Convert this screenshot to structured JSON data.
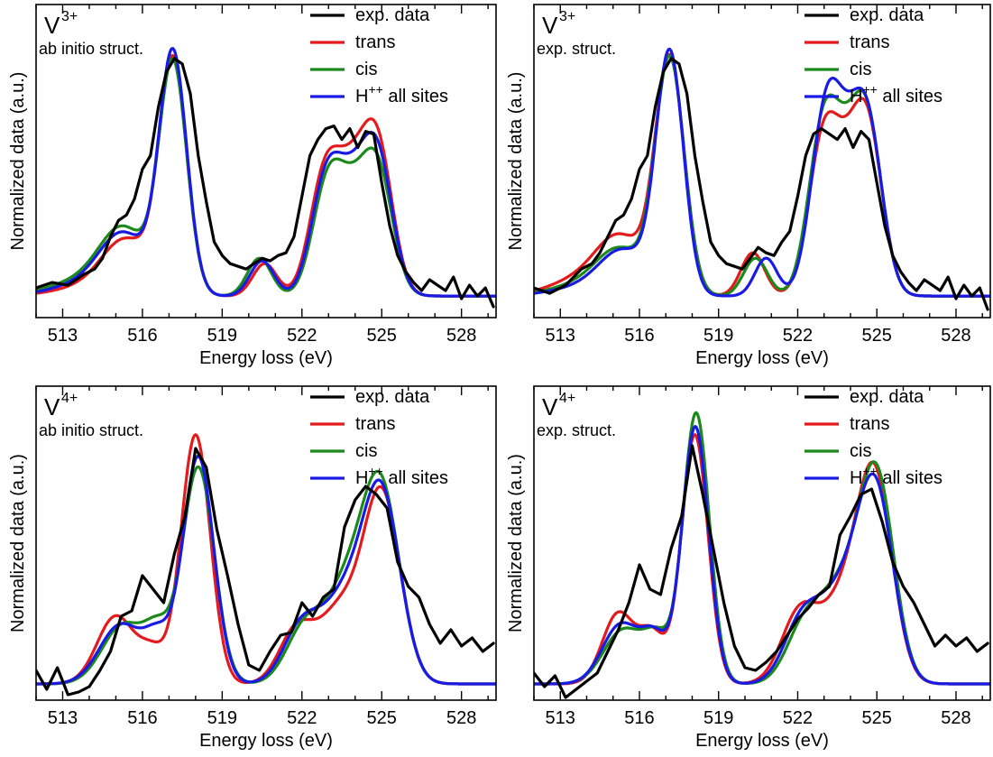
{
  "colors": {
    "exp": "#000000",
    "trans": "#e41a1c",
    "cis": "#1b8a1b",
    "hpp": "#1a1ae6"
  },
  "legend": [
    {
      "key": "exp",
      "label": "exp. data"
    },
    {
      "key": "trans",
      "label": "trans"
    },
    {
      "key": "cis",
      "label": "cis"
    },
    {
      "key": "hpp",
      "label": "H",
      "sup": "++",
      "suffix": " all sites"
    }
  ],
  "chart_data": [
    {
      "type": "line",
      "ion": "V",
      "ion_charge": "3+",
      "structure": "ab initio struct.",
      "xlabel": "Energy loss (eV)",
      "ylabel": "Normalized data (a.u.)",
      "xlim": [
        512,
        529.3
      ],
      "ylim": [
        -0.08,
        1.08
      ],
      "xticks": [
        513,
        516,
        519,
        522,
        525,
        528
      ],
      "series": [
        {
          "name": "exp. data",
          "key": "exp",
          "x": [
            512,
            512.6,
            513.2,
            513.8,
            514.2,
            514.5,
            514.8,
            515.1,
            515.4,
            515.7,
            516.0,
            516.3,
            516.6,
            516.9,
            517.2,
            517.5,
            517.8,
            518.1,
            518.4,
            518.7,
            519.0,
            519.3,
            519.6,
            519.9,
            520.2,
            520.5,
            520.8,
            521.1,
            521.4,
            521.7,
            522.0,
            522.3,
            522.6,
            522.9,
            523.2,
            523.5,
            523.8,
            524.1,
            524.4,
            524.7,
            525.0,
            525.3,
            525.6,
            525.9,
            526.2,
            526.5,
            526.8,
            527.1,
            527.4,
            527.7,
            528.0,
            528.3,
            528.6,
            528.9,
            529.2
          ],
          "y": [
            0.03,
            0.05,
            0.04,
            0.08,
            0.1,
            0.14,
            0.22,
            0.28,
            0.3,
            0.36,
            0.47,
            0.52,
            0.7,
            0.83,
            0.88,
            0.86,
            0.75,
            0.52,
            0.35,
            0.2,
            0.15,
            0.12,
            0.11,
            0.1,
            0.12,
            0.14,
            0.13,
            0.15,
            0.16,
            0.22,
            0.37,
            0.52,
            0.58,
            0.62,
            0.63,
            0.58,
            0.62,
            0.55,
            0.61,
            0.6,
            0.42,
            0.26,
            0.15,
            0.09,
            0.05,
            0.02,
            0.06,
            0.04,
            0.02,
            0.07,
            -0.01,
            0.04,
            0.0,
            0.03,
            -0.04
          ]
        },
        {
          "name": "trans",
          "key": "trans",
          "peaks": [
            [
              513.8,
              0.03,
              1.2
            ],
            [
              515.4,
              0.2,
              0.9
            ],
            [
              517.15,
              0.86,
              0.52
            ],
            [
              520.6,
              0.12,
              0.45
            ],
            [
              522.8,
              0.37,
              0.55
            ],
            [
              523.9,
              0.44,
              0.7
            ],
            [
              524.9,
              0.45,
              0.55
            ]
          ]
        },
        {
          "name": "cis",
          "key": "cis",
          "peaks": [
            [
              513.6,
              0.05,
              1.2
            ],
            [
              515.3,
              0.24,
              0.9
            ],
            [
              517.15,
              0.85,
              0.52
            ],
            [
              520.4,
              0.14,
              0.45
            ],
            [
              522.9,
              0.33,
              0.55
            ],
            [
              523.9,
              0.36,
              0.7
            ],
            [
              524.9,
              0.38,
              0.55
            ]
          ]
        },
        {
          "name": "H++ all sites",
          "key": "hpp",
          "peaks": [
            [
              513.7,
              0.04,
              1.2
            ],
            [
              515.3,
              0.22,
              0.9
            ],
            [
              517.15,
              0.89,
              0.52
            ],
            [
              520.5,
              0.13,
              0.45
            ],
            [
              522.85,
              0.35,
              0.55
            ],
            [
              523.9,
              0.4,
              0.7
            ],
            [
              524.9,
              0.42,
              0.55
            ]
          ]
        }
      ]
    },
    {
      "type": "line",
      "ion": "V",
      "ion_charge": "3+",
      "structure": "exp. struct.",
      "xlabel": "Energy loss (eV)",
      "ylabel": "Normalized data (a.u.)",
      "xlim": [
        512,
        529.3
      ],
      "ylim": [
        -0.08,
        1.08
      ],
      "xticks": [
        513,
        516,
        519,
        522,
        525,
        528
      ],
      "series": [
        {
          "name": "exp. data",
          "key": "exp",
          "x": [
            512,
            512.6,
            513.2,
            513.8,
            514.2,
            514.5,
            514.8,
            515.1,
            515.4,
            515.7,
            516.0,
            516.3,
            516.6,
            516.9,
            517.2,
            517.5,
            517.8,
            518.1,
            518.4,
            518.7,
            519.0,
            519.3,
            519.6,
            519.9,
            520.2,
            520.5,
            520.8,
            521.1,
            521.4,
            521.7,
            522.0,
            522.3,
            522.6,
            522.9,
            523.2,
            523.5,
            523.8,
            524.1,
            524.4,
            524.7,
            525.0,
            525.3,
            525.6,
            525.9,
            526.2,
            526.5,
            526.8,
            527.1,
            527.4,
            527.7,
            528.0,
            528.3,
            528.6,
            528.9,
            529.2
          ],
          "y": [
            0.03,
            0.01,
            0.04,
            0.1,
            0.12,
            0.16,
            0.22,
            0.28,
            0.3,
            0.36,
            0.47,
            0.52,
            0.7,
            0.83,
            0.88,
            0.86,
            0.75,
            0.52,
            0.35,
            0.2,
            0.15,
            0.12,
            0.11,
            0.1,
            0.14,
            0.18,
            0.16,
            0.15,
            0.2,
            0.24,
            0.37,
            0.52,
            0.6,
            0.62,
            0.6,
            0.58,
            0.62,
            0.55,
            0.61,
            0.58,
            0.42,
            0.26,
            0.15,
            0.09,
            0.05,
            0.02,
            0.06,
            0.04,
            0.02,
            0.07,
            -0.01,
            0.04,
            0.0,
            0.03,
            -0.05
          ]
        },
        {
          "name": "trans",
          "key": "trans",
          "peaks": [
            [
              513.8,
              0.06,
              1.2
            ],
            [
              515.3,
              0.2,
              0.9
            ],
            [
              517.15,
              0.87,
              0.55
            ],
            [
              520.3,
              0.16,
              0.45
            ],
            [
              522.9,
              0.44,
              0.55
            ],
            [
              523.8,
              0.42,
              0.7
            ],
            [
              524.7,
              0.5,
              0.55
            ]
          ]
        },
        {
          "name": "cis",
          "key": "cis",
          "peaks": [
            [
              513.8,
              0.04,
              1.2
            ],
            [
              515.3,
              0.16,
              0.9
            ],
            [
              517.15,
              0.87,
              0.55
            ],
            [
              520.4,
              0.14,
              0.45
            ],
            [
              522.9,
              0.48,
              0.55
            ],
            [
              523.8,
              0.46,
              0.7
            ],
            [
              524.7,
              0.5,
              0.55
            ]
          ]
        },
        {
          "name": "H++ all sites",
          "key": "hpp",
          "peaks": [
            [
              513.8,
              0.03,
              1.2
            ],
            [
              515.4,
              0.16,
              0.9
            ],
            [
              517.15,
              0.89,
              0.52
            ],
            [
              520.8,
              0.14,
              0.42
            ],
            [
              523.0,
              0.5,
              0.55
            ],
            [
              523.8,
              0.46,
              0.7
            ],
            [
              524.7,
              0.5,
              0.55
            ]
          ]
        }
      ]
    },
    {
      "type": "line",
      "ion": "V",
      "ion_charge": "4+",
      "structure": "ab initio struct.",
      "xlabel": "Energy loss (eV)",
      "ylabel": "Normalized data (a.u.)",
      "xlim": [
        512,
        529.3
      ],
      "ylim": [
        -0.06,
        1.1
      ],
      "xticks": [
        513,
        516,
        519,
        522,
        525,
        528
      ],
      "series": [
        {
          "name": "exp. data",
          "key": "exp",
          "x": [
            512,
            512.4,
            512.8,
            513.2,
            513.6,
            514.0,
            514.4,
            514.8,
            515.2,
            515.6,
            516.0,
            516.4,
            516.8,
            517.2,
            517.6,
            518.0,
            518.4,
            518.8,
            519.2,
            519.6,
            520.0,
            520.4,
            520.8,
            521.2,
            521.6,
            522.0,
            522.4,
            522.8,
            523.2,
            523.6,
            524.0,
            524.4,
            524.8,
            525.2,
            525.6,
            526.0,
            526.4,
            526.8,
            527.2,
            527.6,
            528.0,
            528.4,
            528.8,
            529.2
          ],
          "y": [
            0.05,
            -0.02,
            0.06,
            -0.04,
            -0.03,
            -0.01,
            0.05,
            0.12,
            0.25,
            0.27,
            0.4,
            0.35,
            0.3,
            0.48,
            0.62,
            0.87,
            0.8,
            0.57,
            0.4,
            0.22,
            0.07,
            0.05,
            0.12,
            0.18,
            0.19,
            0.3,
            0.25,
            0.32,
            0.35,
            0.58,
            0.68,
            0.73,
            0.7,
            0.65,
            0.45,
            0.36,
            0.32,
            0.22,
            0.15,
            0.2,
            0.14,
            0.17,
            0.12,
            0.15
          ]
        },
        {
          "name": "trans",
          "key": "trans",
          "peaks": [
            [
              515.0,
              0.25,
              0.7
            ],
            [
              516.4,
              0.11,
              0.5
            ],
            [
              518.0,
              0.92,
              0.55
            ],
            [
              521.8,
              0.2,
              0.65
            ],
            [
              523.4,
              0.26,
              0.75
            ],
            [
              525.0,
              0.7,
              0.7
            ]
          ]
        },
        {
          "name": "cis",
          "key": "cis",
          "peaks": [
            [
              515.3,
              0.22,
              0.8
            ],
            [
              516.6,
              0.16,
              0.5
            ],
            [
              518.1,
              0.8,
              0.6
            ],
            [
              522.1,
              0.2,
              0.7
            ],
            [
              523.7,
              0.34,
              0.8
            ],
            [
              525.0,
              0.68,
              0.7
            ]
          ]
        },
        {
          "name": "H++ all sites",
          "key": "hpp",
          "peaks": [
            [
              515.2,
              0.22,
              0.8
            ],
            [
              516.6,
              0.15,
              0.5
            ],
            [
              518.1,
              0.84,
              0.58
            ],
            [
              522.0,
              0.21,
              0.7
            ],
            [
              523.6,
              0.3,
              0.8
            ],
            [
              525.0,
              0.68,
              0.7
            ]
          ]
        }
      ]
    },
    {
      "type": "line",
      "ion": "V",
      "ion_charge": "4+",
      "structure": "exp. struct.",
      "xlabel": "Energy loss (eV)",
      "ylabel": "Normalized data (a.u.)",
      "xlim": [
        512,
        529.3
      ],
      "ylim": [
        -0.06,
        1.1
      ],
      "xticks": [
        513,
        516,
        519,
        522,
        525,
        528
      ],
      "series": [
        {
          "name": "exp. data",
          "key": "exp",
          "x": [
            512,
            512.4,
            512.8,
            513.2,
            513.6,
            514.0,
            514.4,
            514.8,
            515.2,
            515.6,
            516.0,
            516.4,
            516.8,
            517.2,
            517.6,
            518.0,
            518.4,
            518.8,
            519.2,
            519.6,
            520.0,
            520.4,
            520.8,
            521.2,
            521.6,
            522.0,
            522.4,
            522.8,
            523.2,
            523.6,
            524.0,
            524.4,
            524.8,
            525.2,
            525.6,
            526.0,
            526.4,
            526.8,
            527.2,
            527.6,
            528.0,
            528.4,
            528.8,
            529.2
          ],
          "y": [
            0.04,
            -0.01,
            0.03,
            -0.05,
            -0.02,
            0.01,
            0.04,
            0.12,
            0.2,
            0.3,
            0.44,
            0.35,
            0.33,
            0.5,
            0.62,
            0.88,
            0.7,
            0.5,
            0.3,
            0.14,
            0.06,
            0.05,
            0.08,
            0.12,
            0.18,
            0.24,
            0.28,
            0.33,
            0.36,
            0.55,
            0.62,
            0.7,
            0.72,
            0.6,
            0.45,
            0.36,
            0.3,
            0.22,
            0.14,
            0.18,
            0.14,
            0.17,
            0.12,
            0.15
          ]
        },
        {
          "name": "trans",
          "key": "trans",
          "peaks": [
            [
              515.2,
              0.26,
              0.6
            ],
            [
              516.5,
              0.18,
              0.5
            ],
            [
              518.1,
              0.92,
              0.5
            ],
            [
              522.1,
              0.27,
              0.7
            ],
            [
              523.6,
              0.25,
              0.7
            ],
            [
              524.9,
              0.77,
              0.68
            ]
          ]
        },
        {
          "name": "cis",
          "key": "cis",
          "peaks": [
            [
              515.4,
              0.2,
              0.75
            ],
            [
              516.7,
              0.15,
              0.5
            ],
            [
              518.15,
              1.0,
              0.5
            ],
            [
              522.3,
              0.22,
              0.7
            ],
            [
              523.7,
              0.32,
              0.75
            ],
            [
              525.0,
              0.74,
              0.66
            ]
          ]
        },
        {
          "name": "H++ all sites",
          "key": "hpp",
          "peaks": [
            [
              515.3,
              0.22,
              0.7
            ],
            [
              516.6,
              0.16,
              0.5
            ],
            [
              518.12,
              0.95,
              0.5
            ],
            [
              522.2,
              0.24,
              0.7
            ],
            [
              523.65,
              0.3,
              0.75
            ],
            [
              524.95,
              0.7,
              0.68
            ]
          ]
        }
      ]
    }
  ]
}
